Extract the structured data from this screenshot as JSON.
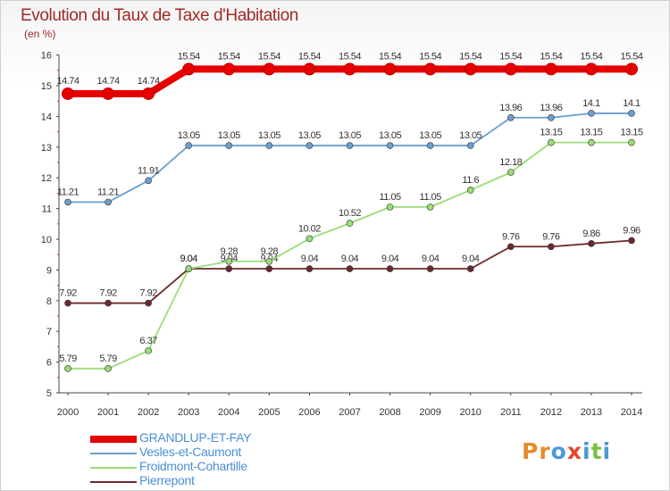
{
  "title": "Evolution du Taux de Taxe d'Habitation",
  "subtitle": "(en %)",
  "brand": {
    "text": "Proxiti",
    "letter_colors": [
      "#e58b2b",
      "#e58b2b",
      "#4a9ad6",
      "#e0482f",
      "#4a9ad6",
      "#7bbf44",
      "#4a9ad6"
    ]
  },
  "chart_data": {
    "type": "line",
    "title": "Evolution du Taux de Taxe d'Habitation",
    "ylabel": "(en %)",
    "xlabel": "",
    "ylim": [
      5,
      16
    ],
    "yticks": [
      "5",
      "6",
      "7",
      "8",
      "9",
      "10",
      "11",
      "12",
      "13",
      "14",
      "15",
      "16"
    ],
    "grid": false,
    "legend_position": "bottom-left",
    "categories": [
      "2000",
      "2001",
      "2002",
      "2003",
      "2004",
      "2005",
      "2006",
      "2007",
      "2008",
      "2009",
      "2010",
      "2011",
      "2012",
      "2013",
      "2014"
    ],
    "series": [
      {
        "name": "GRANDLUP-ET-FAY",
        "color": "#e60000",
        "values": [
          14.74,
          14.74,
          14.74,
          15.54,
          15.54,
          15.54,
          15.54,
          15.54,
          15.54,
          15.54,
          15.54,
          15.54,
          15.54,
          15.54,
          15.54
        ],
        "labels": [
          "14.74",
          "14.74",
          "14.74",
          "15.54",
          "15.54",
          "15.54",
          "15.54",
          "15.54",
          "15.54",
          "15.54",
          "15.54",
          "15.54",
          "15.54",
          "15.54",
          "15.54"
        ]
      },
      {
        "name": "Vesles-et-Caumont",
        "color": "#6a9fd2",
        "values": [
          11.21,
          11.21,
          11.91,
          13.05,
          13.05,
          13.05,
          13.05,
          13.05,
          13.05,
          13.05,
          13.05,
          13.96,
          13.96,
          14.1,
          14.1
        ],
        "labels": [
          "11.21",
          "11.21",
          "11.91",
          "13.05",
          "13.05",
          "13.05",
          "13.05",
          "13.05",
          "13.05",
          "13.05",
          "13.05",
          "13.96",
          "13.96",
          "14.1",
          "14.1"
        ]
      },
      {
        "name": "Froidmont-Cohartille",
        "color": "#99dd77",
        "values": [
          5.79,
          5.79,
          6.37,
          9.04,
          9.28,
          9.28,
          10.02,
          10.52,
          11.05,
          11.05,
          11.6,
          12.18,
          13.15,
          13.15,
          13.15
        ],
        "labels": [
          "5.79",
          "5.79",
          "6.37",
          "9.04",
          "9.28",
          "9.28",
          "10.02",
          "10.52",
          "11.05",
          "11.05",
          "11.6",
          "12.18",
          "13.15",
          "13.15",
          "13.15"
        ]
      },
      {
        "name": "Pierrepont",
        "color": "#6b2a2a",
        "values": [
          7.92,
          7.92,
          7.92,
          9.04,
          9.04,
          9.04,
          9.04,
          9.04,
          9.04,
          9.04,
          9.04,
          9.76,
          9.76,
          9.86,
          9.96
        ],
        "labels": [
          "7.92",
          "7.92",
          "7.92",
          "9.04",
          "9.04",
          "9.04",
          "9.04",
          "9.04",
          "9.04",
          "9.04",
          "9.04",
          "9.76",
          "9.76",
          "9.86",
          "9.96"
        ]
      }
    ]
  }
}
